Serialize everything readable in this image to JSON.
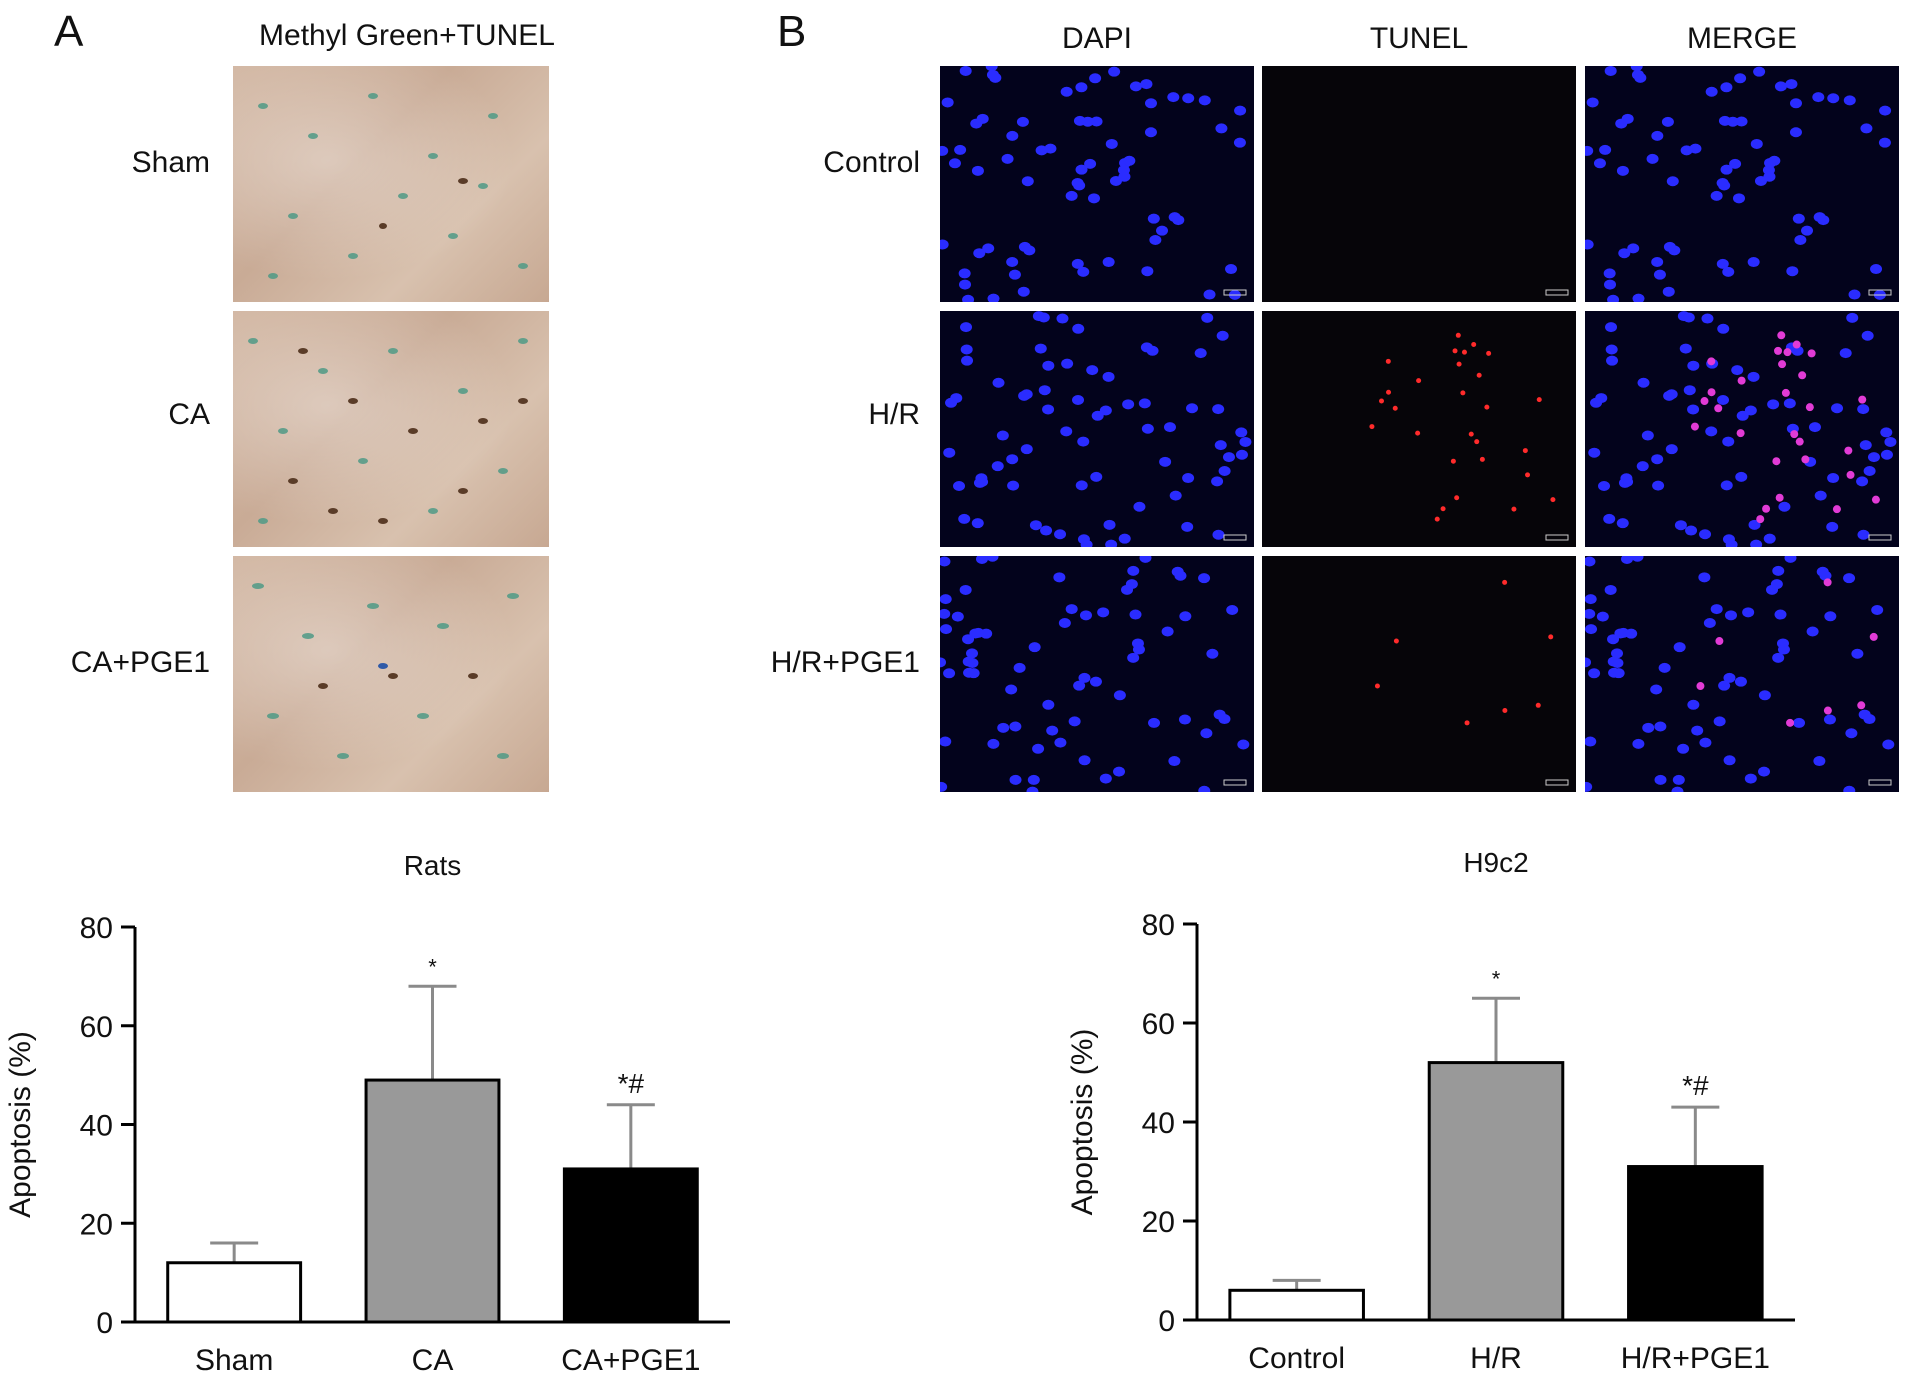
{
  "panels": {
    "a_letter": "A",
    "b_letter": "B",
    "a_col_title": "Methyl  Green+TUNEL",
    "a_rows": [
      "Sham",
      "CA",
      "CA+PGE1"
    ],
    "b_col_titles": [
      "DAPI",
      "TUNEL",
      "MERGE"
    ],
    "b_rows": [
      "Control",
      "H/R",
      "H/R+PGE1"
    ]
  },
  "chart_data": [
    {
      "type": "bar",
      "title": "Rats",
      "xlabel": "",
      "ylabel": "Apoptosis (%)",
      "ylim": [
        0,
        80
      ],
      "yticks": [
        0,
        20,
        40,
        60,
        80
      ],
      "categories": [
        "Sham",
        "CA",
        "CA+PGE1"
      ],
      "values": [
        12,
        49,
        31
      ],
      "errors": [
        4,
        19,
        13
      ],
      "annotations": [
        "",
        "*",
        "*#"
      ],
      "colors": [
        "#ffffff",
        "#999999",
        "#000000"
      ]
    },
    {
      "type": "bar",
      "title": "H9c2",
      "xlabel": "",
      "ylabel": "Apoptosis (%)",
      "ylim": [
        0,
        80
      ],
      "yticks": [
        0,
        20,
        40,
        60,
        80
      ],
      "categories": [
        "Control",
        "H/R",
        "H/R+PGE1"
      ],
      "values": [
        6,
        52,
        31
      ],
      "errors": [
        2,
        13,
        12
      ],
      "annotations": [
        "",
        "*",
        "*#"
      ],
      "colors": [
        "#ffffff",
        "#999999",
        "#000000"
      ]
    }
  ]
}
